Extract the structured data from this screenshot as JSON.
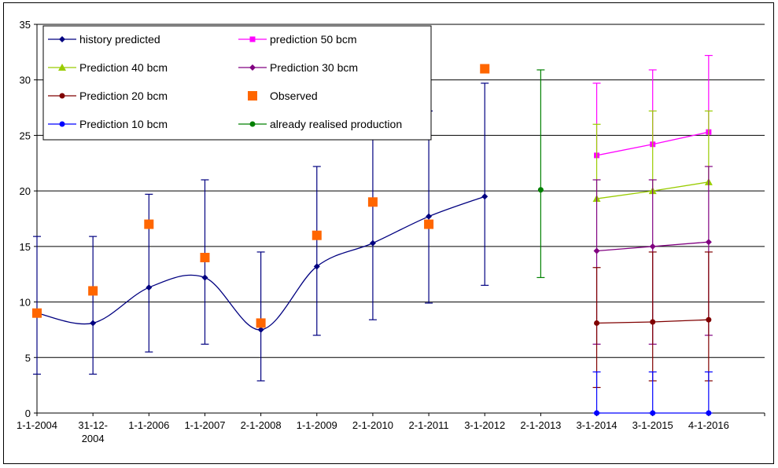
{
  "chart_data": {
    "type": "line",
    "title": "",
    "xlabel": "",
    "ylabel": "",
    "ylim": [
      0,
      35
    ],
    "yticks": [
      0,
      5,
      10,
      15,
      20,
      25,
      30,
      35
    ],
    "grid": "horizontal",
    "legend_position": "top-left",
    "legend_columns": 2,
    "categories": [
      "1-1-2004",
      "31-12-2004",
      "1-1-2006",
      "1-1-2007",
      "2-1-2008",
      "1-1-2009",
      "2-1-2010",
      "2-1-2011",
      "3-1-2012",
      "2-1-2013",
      "3-1-2014",
      "3-1-2015",
      "4-1-2016"
    ],
    "category_labels": [
      [
        "1-1-2004"
      ],
      [
        "31-12-",
        "2004"
      ],
      [
        "1-1-2006"
      ],
      [
        "1-1-2007"
      ],
      [
        "2-1-2008"
      ],
      [
        "1-1-2009"
      ],
      [
        "2-1-2010"
      ],
      [
        "2-1-2011"
      ],
      [
        "3-1-2012"
      ],
      [
        "2-1-2013"
      ],
      [
        "3-1-2014"
      ],
      [
        "3-1-2015"
      ],
      [
        "4-1-2016"
      ]
    ],
    "series": [
      {
        "name": "history predicted",
        "color": "#000080",
        "marker": "diamond",
        "smooth": true,
        "x": [
          0,
          1,
          2,
          3,
          4,
          5,
          6,
          7,
          8
        ],
        "values": [
          9.0,
          8.1,
          11.3,
          12.2,
          7.5,
          13.2,
          15.3,
          17.7,
          19.5
        ],
        "error_low": [
          3.5,
          3.5,
          5.5,
          6.2,
          2.9,
          7.0,
          8.4,
          9.9,
          11.5
        ],
        "error_high": [
          15.9,
          15.9,
          19.7,
          21.0,
          14.5,
          22.2,
          24.8,
          27.2,
          29.7
        ]
      },
      {
        "name": "prediction 50 bcm",
        "color": "#ff00ff",
        "marker": "square",
        "smooth": false,
        "x": [
          10,
          11,
          12
        ],
        "values": [
          23.2,
          24.2,
          25.3
        ],
        "error_low": [
          null,
          null,
          null
        ],
        "error_high": [
          29.7,
          30.9,
          32.2
        ]
      },
      {
        "name": "Prediction 40 bcm",
        "color": "#99cc00",
        "marker": "triangle",
        "smooth": false,
        "x": [
          10,
          11,
          12
        ],
        "values": [
          19.3,
          20.0,
          20.8
        ],
        "error_low": [
          null,
          null,
          null
        ],
        "error_high": [
          26.0,
          27.2,
          27.2
        ]
      },
      {
        "name": "Prediction 30 bcm",
        "color": "#800080",
        "marker": "diamond",
        "smooth": false,
        "x": [
          10,
          11,
          12
        ],
        "values": [
          14.6,
          15.0,
          15.4
        ],
        "error_low": [
          6.2,
          6.2,
          7.0
        ],
        "error_high": [
          21.0,
          21.0,
          22.2
        ]
      },
      {
        "name": "Prediction 20 bcm",
        "color": "#800000",
        "marker": "circle",
        "smooth": false,
        "x": [
          10,
          11,
          12
        ],
        "values": [
          8.1,
          8.2,
          8.4
        ],
        "error_low": [
          2.3,
          2.9,
          2.9
        ],
        "error_high": [
          13.1,
          14.5,
          14.5
        ]
      },
      {
        "name": "Observed",
        "color": "#ff6600",
        "marker": "bigsquare",
        "line": false,
        "x": [
          0,
          1,
          2,
          3,
          4,
          5,
          6,
          7,
          8
        ],
        "values": [
          9.0,
          11.0,
          17.0,
          14.0,
          8.1,
          16.0,
          19.0,
          17.0,
          31.0
        ]
      },
      {
        "name": "Prediction 10 bcm",
        "color": "#0000ff",
        "marker": "circle",
        "smooth": false,
        "x": [
          10,
          11,
          12
        ],
        "values": [
          0,
          0,
          0
        ],
        "error_low": [
          0,
          0,
          0
        ],
        "error_high": [
          3.7,
          3.7,
          3.7
        ]
      },
      {
        "name": "already realised production",
        "color": "#008000",
        "marker": "circle",
        "smooth": false,
        "x": [
          9
        ],
        "values": [
          20.1
        ],
        "error_low": [
          12.2
        ],
        "error_high": [
          30.9
        ]
      }
    ]
  }
}
